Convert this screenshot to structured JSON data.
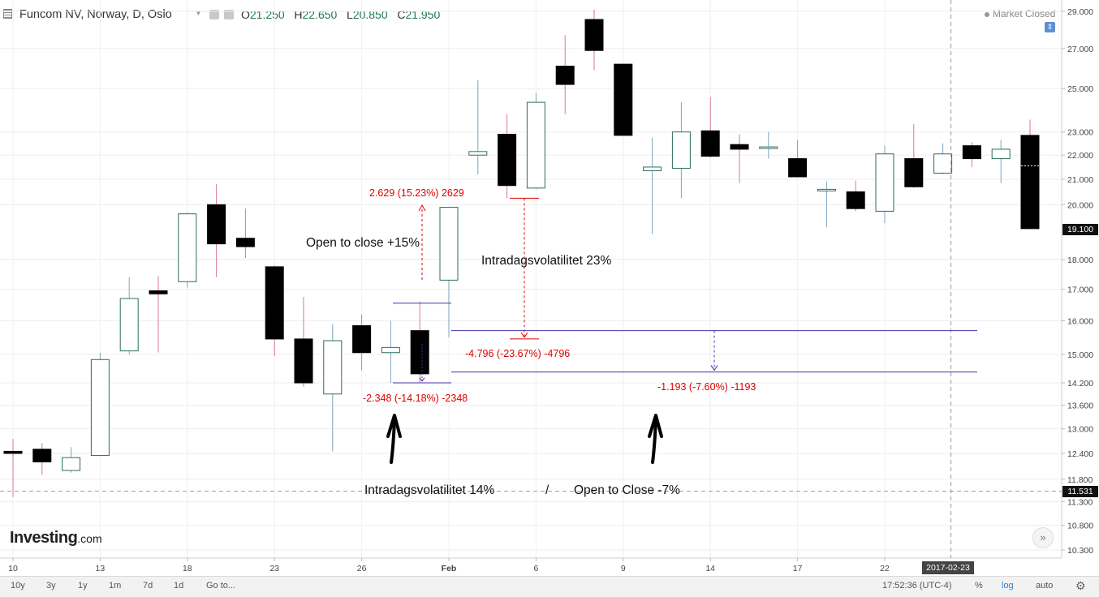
{
  "header": {
    "title": "Funcom NV, Norway, D, Oslo",
    "o_label": "O",
    "o_value": "21.250",
    "h_label": "H",
    "h_value": "22.650",
    "l_label": "L",
    "l_value": "20.850",
    "c_label": "C",
    "c_value": "21.950",
    "market_status": "Market Closed"
  },
  "colors": {
    "up_border": "#2c6e57",
    "down_fill": "#000000",
    "wick_up": "#7aa6c2",
    "wick_down": "#d77a8c",
    "annotation_red": "#e00000",
    "line_purple": "#4a2fa8"
  },
  "chart_data": {
    "type": "candlestick",
    "scale": "log",
    "ylim": [
      10.0,
      29.5
    ],
    "y_ticks": [
      "29.000",
      "27.000",
      "25.000",
      "23.000",
      "22.000",
      "21.000",
      "20.000",
      "18.000",
      "17.000",
      "16.000",
      "15.000",
      "14.200",
      "13.600",
      "13.000",
      "12.400",
      "11.800",
      "11.300",
      "10.800",
      "10.300"
    ],
    "x_ticks": [
      {
        "label": "10",
        "index": 0
      },
      {
        "label": "13",
        "index": 3
      },
      {
        "label": "18",
        "index": 6
      },
      {
        "label": "23",
        "index": 9
      },
      {
        "label": "26",
        "index": 12
      },
      {
        "label": "Feb",
        "index": 15
      },
      {
        "label": "6",
        "index": 18
      },
      {
        "label": "9",
        "index": 21
      },
      {
        "label": "14",
        "index": 24
      },
      {
        "label": "17",
        "index": 27
      },
      {
        "label": "22",
        "index": 30
      }
    ],
    "candles": [
      {
        "o": 12.45,
        "h": 12.75,
        "l": 11.4,
        "c": 12.4
      },
      {
        "o": 12.5,
        "h": 12.65,
        "l": 11.9,
        "c": 12.2
      },
      {
        "o": 12.0,
        "h": 12.55,
        "l": 11.95,
        "c": 12.3
      },
      {
        "o": 12.35,
        "h": 15.05,
        "l": 12.35,
        "c": 14.85
      },
      {
        "o": 15.1,
        "h": 17.4,
        "l": 15.0,
        "c": 16.7
      },
      {
        "o": 16.95,
        "h": 17.45,
        "l": 15.05,
        "c": 16.85
      },
      {
        "o": 17.25,
        "h": 19.7,
        "l": 17.05,
        "c": 19.65
      },
      {
        "o": 20.0,
        "h": 20.8,
        "l": 17.4,
        "c": 18.55
      },
      {
        "o": 18.75,
        "h": 19.85,
        "l": 18.05,
        "c": 18.45
      },
      {
        "o": 17.75,
        "h": 17.8,
        "l": 14.95,
        "c": 15.45
      },
      {
        "o": 15.45,
        "h": 16.75,
        "l": 14.1,
        "c": 14.2
      },
      {
        "o": 13.9,
        "h": 15.9,
        "l": 12.45,
        "c": 15.4
      },
      {
        "o": 15.85,
        "h": 16.2,
        "l": 14.55,
        "c": 15.05
      },
      {
        "o": 15.05,
        "h": 16.0,
        "l": 14.2,
        "c": 15.2
      },
      {
        "o": 15.7,
        "h": 16.6,
        "l": 14.2,
        "c": 14.45
      },
      {
        "o": 17.3,
        "h": 19.9,
        "l": 15.5,
        "c": 19.9
      },
      {
        "o": 22.0,
        "h": 25.4,
        "l": 21.2,
        "c": 22.15
      },
      {
        "o": 22.9,
        "h": 23.8,
        "l": 20.25,
        "c": 20.75
      },
      {
        "o": 20.65,
        "h": 24.8,
        "l": 20.6,
        "c": 24.35
      },
      {
        "o": 26.1,
        "h": 27.7,
        "l": 23.8,
        "c": 25.2
      },
      {
        "o": 28.55,
        "h": 29.1,
        "l": 25.9,
        "c": 26.9
      },
      {
        "o": 26.2,
        "h": 26.2,
        "l": 22.85,
        "c": 22.85
      },
      {
        "o": 21.35,
        "h": 22.75,
        "l": 18.9,
        "c": 21.5
      },
      {
        "o": 21.45,
        "h": 24.35,
        "l": 20.25,
        "c": 23.0
      },
      {
        "o": 23.05,
        "h": 24.6,
        "l": 21.9,
        "c": 21.95
      },
      {
        "o": 22.45,
        "h": 22.9,
        "l": 20.85,
        "c": 22.25
      },
      {
        "o": 22.35,
        "h": 23.0,
        "l": 21.85,
        "c": 22.35
      },
      {
        "o": 21.85,
        "h": 22.65,
        "l": 21.1,
        "c": 21.1
      },
      {
        "o": 20.6,
        "h": 20.9,
        "l": 19.15,
        "c": 20.6
      },
      {
        "o": 20.5,
        "h": 20.95,
        "l": 19.75,
        "c": 19.85
      },
      {
        "o": 19.75,
        "h": 22.4,
        "l": 19.3,
        "c": 22.05
      },
      {
        "o": 21.85,
        "h": 23.35,
        "l": 20.65,
        "c": 20.7
      },
      {
        "o": 21.25,
        "h": 22.5,
        "l": 21.2,
        "c": 22.05
      },
      {
        "o": 22.4,
        "h": 22.55,
        "l": 21.5,
        "c": 21.85
      },
      {
        "o": 21.85,
        "h": 22.65,
        "l": 20.85,
        "c": 22.25
      },
      {
        "o": 22.85,
        "h": 23.55,
        "l": 19.1,
        "c": 19.1
      }
    ],
    "current_price_label": "19.100",
    "crosshair_price_label": "11.531",
    "crosshair_date_label": "2017-02-23",
    "annotations": {
      "up_measure": "2.629 (15.23%) 2629",
      "left_measure": "-2.348 (-14.18%) -2348",
      "mid_measure": "-4.796 (-23.67%) -4796",
      "right_measure": "-1.193 (-7.60%) -1193",
      "note_open_close_15": "Open to close +15%",
      "note_intraday_23": "Intradagsvolatilitet 23%",
      "note_intraday_14": "Intradagsvolatilitet 14%",
      "note_slash": "/",
      "note_open_close_7": "Open to Close -7%"
    }
  },
  "logo": {
    "text_main": "Investing",
    "text_suffix": ".com"
  },
  "bottom_bar": {
    "ranges": [
      "10y",
      "3y",
      "1y",
      "1m",
      "7d",
      "1d"
    ],
    "goto_label": "Go to...",
    "time": "17:52:36 (UTC-4)",
    "percent_label": "%",
    "log_label": "log",
    "auto_label": "auto"
  }
}
